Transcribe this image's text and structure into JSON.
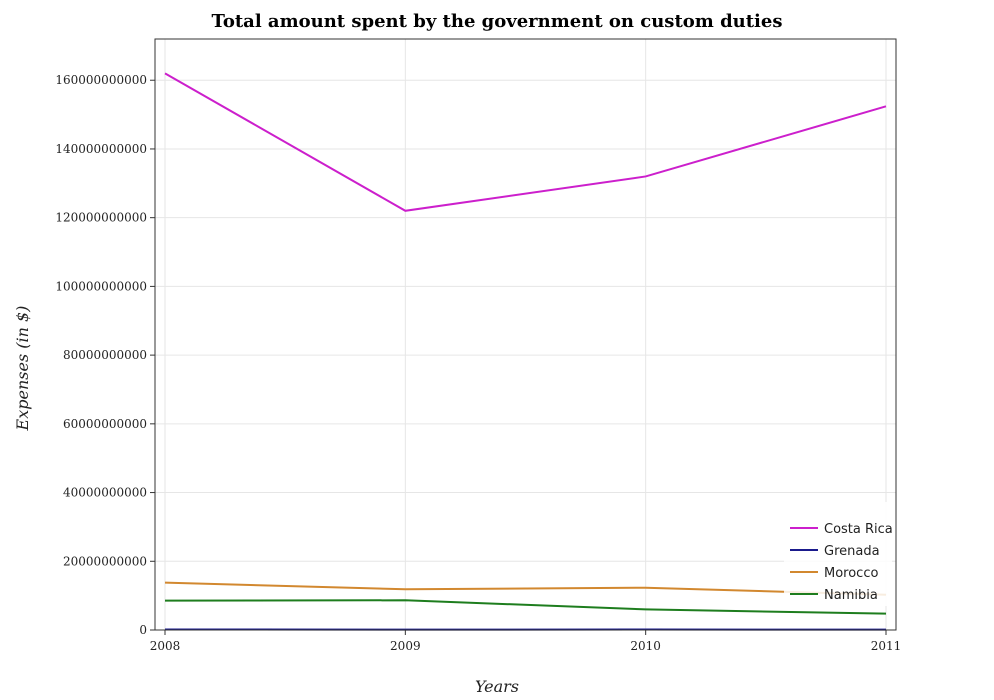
{
  "chart_data": {
    "type": "line",
    "title": "Total amount spent by the government on custom duties",
    "xlabel": "Years",
    "ylabel": "Expenses (in $)",
    "categories": [
      "2008",
      "2009",
      "2010",
      "2011"
    ],
    "ylim": [
      0,
      172000000000
    ],
    "yticks": [
      0,
      20000000000,
      40000000000,
      60000000000,
      80000000000,
      100000000000,
      120000000000,
      140000000000,
      160000000000
    ],
    "ytick_labels": [
      "0",
      "20000000000",
      "40000000000",
      "60000000000",
      "80000000000",
      "100000000000",
      "120000000000",
      "140000000000",
      "160000000000"
    ],
    "grid": true,
    "legend_position": "bottom-right",
    "series": [
      {
        "name": "Costa Rica",
        "color": "#cc1fcc",
        "values": [
          162000000000,
          122000000000,
          132000000000,
          152400000000
        ]
      },
      {
        "name": "Grenada",
        "color": "#1a1a8c",
        "values": [
          150000000,
          120000000,
          130000000,
          120000000
        ]
      },
      {
        "name": "Morocco",
        "color": "#d2882f",
        "values": [
          13800000000,
          11850000000,
          12300000000,
          10250000000
        ]
      },
      {
        "name": "Namibia",
        "color": "#1e7d1e",
        "values": [
          8550000000,
          8650000000,
          6000000000,
          4750000000
        ]
      }
    ]
  }
}
